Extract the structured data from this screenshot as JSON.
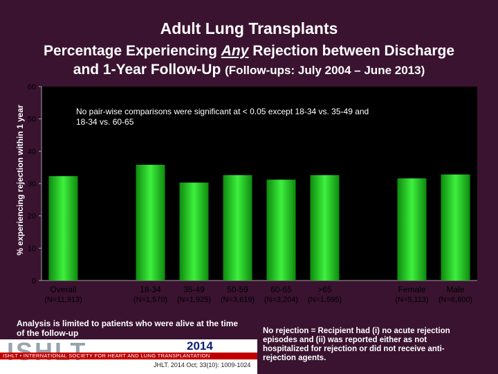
{
  "header": {
    "title": "Adult Lung Transplants",
    "subtitle_line1_pre": "Percentage Experiencing ",
    "subtitle_line1_em": "Any",
    "subtitle_line1_post": " Rejection between Discharge",
    "subtitle_line2_main": "and 1-Year Follow-Up ",
    "subtitle_line2_small": "(Follow-ups: July 2004 – June 2013)"
  },
  "chart_data": {
    "type": "bar",
    "ylabel": "% experiencing rejection within 1 year",
    "ylim": [
      0,
      60
    ],
    "yticks": [
      0,
      10,
      20,
      30,
      40,
      50,
      60
    ],
    "grid": false,
    "bars": [
      {
        "slot": 0,
        "label": "Overall",
        "n": "(N=11,913)",
        "value": 32.3
      },
      {
        "slot": 2,
        "label": "18-34",
        "n": "(N=1,570)",
        "value": 35.8
      },
      {
        "slot": 3,
        "label": "35-49",
        "n": "(N=1,925)",
        "value": 30.3
      },
      {
        "slot": 4,
        "label": "50-59",
        "n": "(N=3,619)",
        "value": 32.6
      },
      {
        "slot": 5,
        "label": "60-65",
        "n": "(N=3,204)",
        "value": 31.2
      },
      {
        "slot": 6,
        "label": ">65",
        "n": "(N=1,595)",
        "value": 32.6
      },
      {
        "slot": 8,
        "label": "Female",
        "n": "(N=5,113)",
        "value": 31.6
      },
      {
        "slot": 9,
        "label": "Male",
        "n": "(N=6,800)",
        "value": 32.8
      }
    ],
    "annotation": "No pair-wise comparisons were significant at < 0.05 except 18-34 vs. 35-49 and 18-34 vs. 60-65",
    "colors": {
      "bar": "#22cc22",
      "plot_bg": "#000000",
      "text": "#ffffff",
      "axis": "#a0a0a0"
    }
  },
  "footer": {
    "left_note": "Analysis is limited to patients who were alive at the time of the follow-up",
    "right_note": "No rejection = Recipient had (i) no acute rejection episodes and (ii) was reported either as not hospitalized for rejection or did not receive anti-rejection agents.",
    "logo_text": "ISHLT",
    "logo_strip": "ISHLT • INTERNATIONAL SOCIETY FOR HEART AND LUNG TRANSPLANTATION",
    "logo_year": "2014",
    "reference": "JHLT. 2014 Oct; 33(10): 1009-1024"
  }
}
